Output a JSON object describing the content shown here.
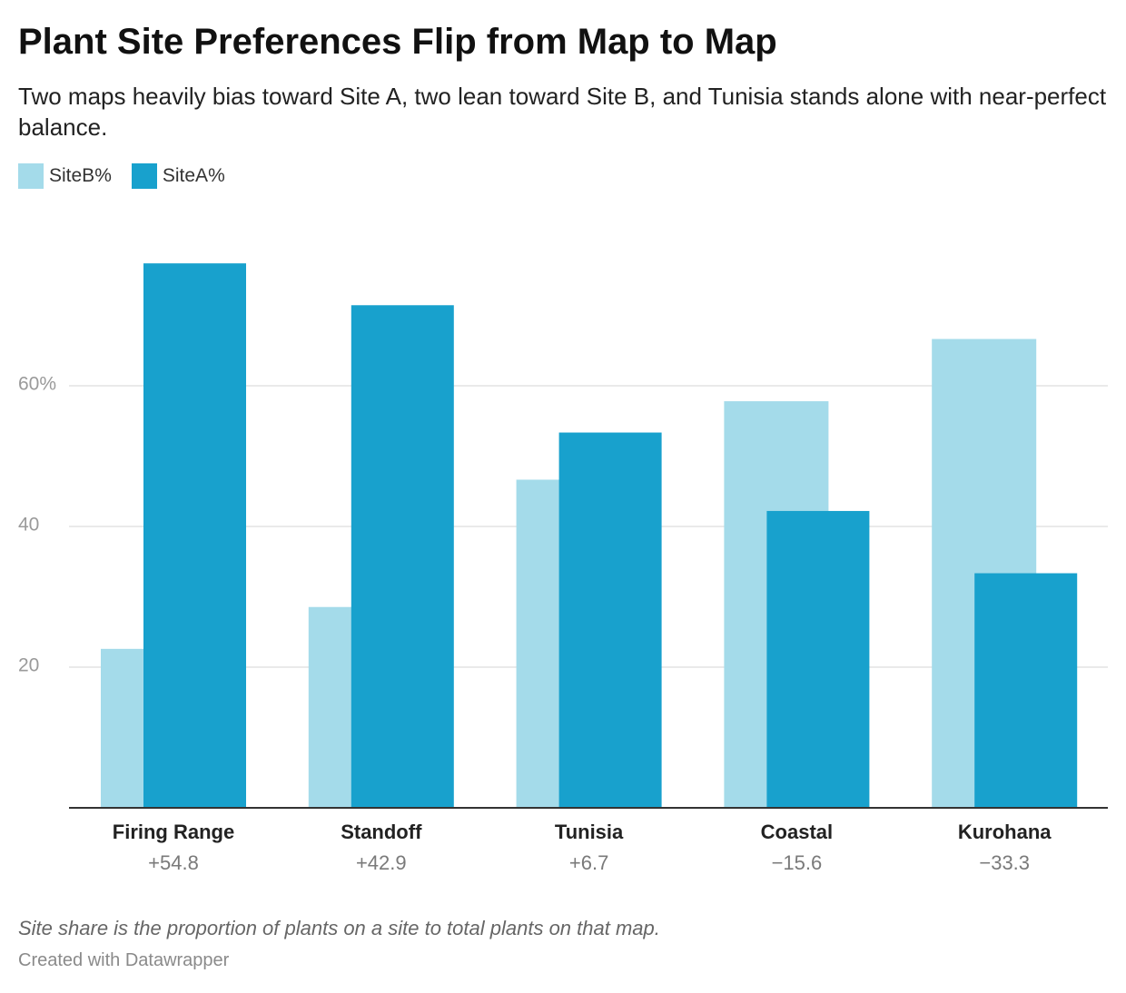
{
  "title": "Plant Site Preferences Flip from Map to Map",
  "subtitle": "Two maps heavily bias toward Site A, two lean toward Site B, and Tunisia stands alone with near-perfect balance.",
  "notes": "Site share is the proportion of plants on a site to total plants on that map.",
  "credit": "Created with Datawrapper",
  "colors": {
    "siteB": "#a4dbea",
    "siteA": "#18a1cd",
    "grid": "#e3e3e3",
    "baseline": "#333333"
  },
  "chart_data": {
    "type": "bar",
    "categories": [
      "Firing Range",
      "Standoff",
      "Tunisia",
      "Coastal",
      "Kurohana"
    ],
    "category_sublabels": [
      "+54.8",
      "+42.9",
      "+6.7",
      "−15.6",
      "−33.3"
    ],
    "series": [
      {
        "name": "SiteB%",
        "values": [
          22.6,
          28.55,
          46.65,
          57.8,
          66.65
        ]
      },
      {
        "name": "SiteA%",
        "values": [
          77.4,
          71.45,
          53.35,
          42.2,
          33.35
        ]
      }
    ],
    "ylim": [
      0,
      80
    ],
    "yticks": [
      {
        "value": 20,
        "label": "20"
      },
      {
        "value": 40,
        "label": "40"
      },
      {
        "value": 60,
        "label": "60%"
      }
    ],
    "grid": true,
    "legend_position": "top-left",
    "xlabel": "",
    "ylabel": ""
  }
}
